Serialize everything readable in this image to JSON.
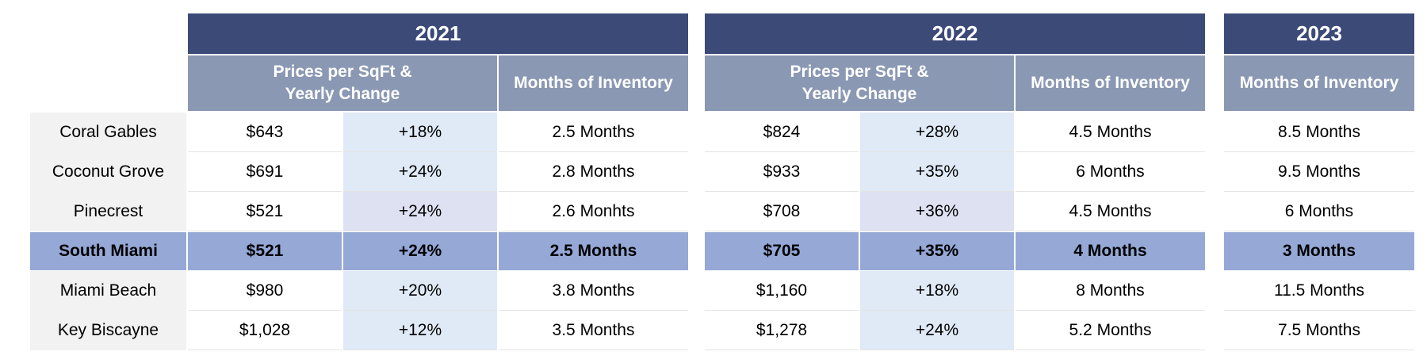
{
  "years": [
    "2021",
    "2022",
    "2023"
  ],
  "headers": {
    "price_line1": "Prices per SqFt &",
    "price_line2": "Yearly Change",
    "inventory": "Months of Inventory"
  },
  "highlight_row": "South Miami",
  "rows": [
    {
      "area": "Coral Gables",
      "p2021": "$643",
      "c2021": "+18%",
      "m2021": "2.5 Months",
      "p2022": "$824",
      "c2022": "+28%",
      "m2022": "4.5 Months",
      "m2023": "8.5 Months"
    },
    {
      "area": "Coconut Grove",
      "p2021": "$691",
      "c2021": "+24%",
      "m2021": "2.8 Months",
      "p2022": "$933",
      "c2022": "+35%",
      "m2022": "6 Months",
      "m2023": "9.5 Months"
    },
    {
      "area": "Pinecrest",
      "p2021": "$521",
      "c2021": "+24%",
      "m2021": "2.6 Monhts",
      "p2022": "$708",
      "c2022": "+36%",
      "m2022": "4.5 Months",
      "m2023": "6 Months"
    },
    {
      "area": "South Miami",
      "p2021": "$521",
      "c2021": "+24%",
      "m2021": "2.5 Months",
      "p2022": "$705",
      "c2022": "+35%",
      "m2022": "4 Months",
      "m2023": "3 Months"
    },
    {
      "area": "Miami Beach",
      "p2021": "$980",
      "c2021": "+20%",
      "m2021": "3.8 Months",
      "p2022": "$1,160",
      "c2022": "+18%",
      "m2022": "8  Months",
      "m2023": "11.5 Months"
    },
    {
      "area": "Key Biscayne",
      "p2021": "$1,028",
      "c2021": "+12%",
      "m2021": "3.5 Months",
      "p2022": "$1,278",
      "c2022": "+24%",
      "m2022": "5.2 Months",
      "m2023": "7.5 Months"
    }
  ]
}
